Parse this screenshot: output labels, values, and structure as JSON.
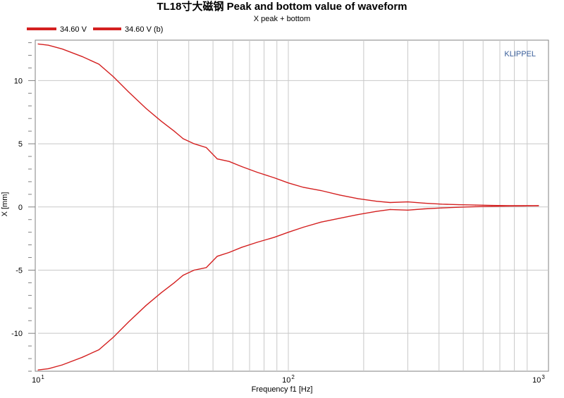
{
  "chart_data": {
    "type": "line",
    "title": "TL18寸大磁钢 Peak and bottom value of waveform",
    "subtitle": "X  peak + bottom",
    "watermark": "KLIPPEL",
    "xlabel": "Frequency f1  [Hz]",
    "ylabel": "X  [mm]",
    "x_scale": "log",
    "xlim": [
      10,
      1000
    ],
    "ylim": [
      -13.0,
      13.2
    ],
    "grid": true,
    "legend_position": "top-left",
    "x_tick_labels": [
      {
        "value": 10,
        "base": "10",
        "exp": "1"
      },
      {
        "value": 100,
        "base": "10",
        "exp": "2"
      },
      {
        "value": 1000,
        "base": "10",
        "exp": "3"
      }
    ],
    "y_ticks": [
      10,
      5,
      0,
      -5,
      -10
    ],
    "y_tick_labels": [
      "10",
      "5",
      "0",
      "-5",
      "-10"
    ],
    "colors": {
      "series": "#d42020",
      "grid": "#c8c8c8",
      "axis": "#808080",
      "watermark": "#3a5f9a"
    },
    "series": [
      {
        "name": "34.60 V",
        "x": [
          10,
          11,
          12.5,
          15,
          17.5,
          20,
          23,
          27,
          31,
          35,
          38,
          42,
          47,
          52,
          58,
          65,
          75,
          88,
          100,
          115,
          135,
          160,
          190,
          225,
          255,
          300,
          350,
          410,
          480,
          560,
          650,
          760,
          870,
          1000
        ],
        "values": [
          12.9,
          12.8,
          12.5,
          11.9,
          11.3,
          10.3,
          9.1,
          7.8,
          6.8,
          6.0,
          5.4,
          5.0,
          4.7,
          3.8,
          3.6,
          3.2,
          2.75,
          2.3,
          1.9,
          1.55,
          1.3,
          0.95,
          0.65,
          0.45,
          0.35,
          0.4,
          0.3,
          0.22,
          0.18,
          0.15,
          0.12,
          0.1,
          0.1,
          0.1
        ]
      },
      {
        "name": "34.60 V (b)",
        "x": [
          10,
          11,
          12.5,
          15,
          17.5,
          20,
          23,
          27,
          31,
          35,
          38,
          42,
          47,
          52,
          58,
          65,
          75,
          88,
          100,
          115,
          135,
          160,
          190,
          225,
          255,
          300,
          350,
          410,
          480,
          560,
          650,
          760,
          870,
          1000
        ],
        "values": [
          -12.9,
          -12.8,
          -12.5,
          -11.9,
          -11.3,
          -10.3,
          -9.1,
          -7.8,
          -6.8,
          -6.0,
          -5.4,
          -5.0,
          -4.8,
          -3.9,
          -3.6,
          -3.2,
          -2.8,
          -2.4,
          -2.0,
          -1.6,
          -1.2,
          -0.9,
          -0.6,
          -0.35,
          -0.2,
          -0.25,
          -0.15,
          -0.08,
          -0.02,
          0.02,
          0.05,
          0.07,
          0.08,
          0.1
        ]
      }
    ]
  }
}
